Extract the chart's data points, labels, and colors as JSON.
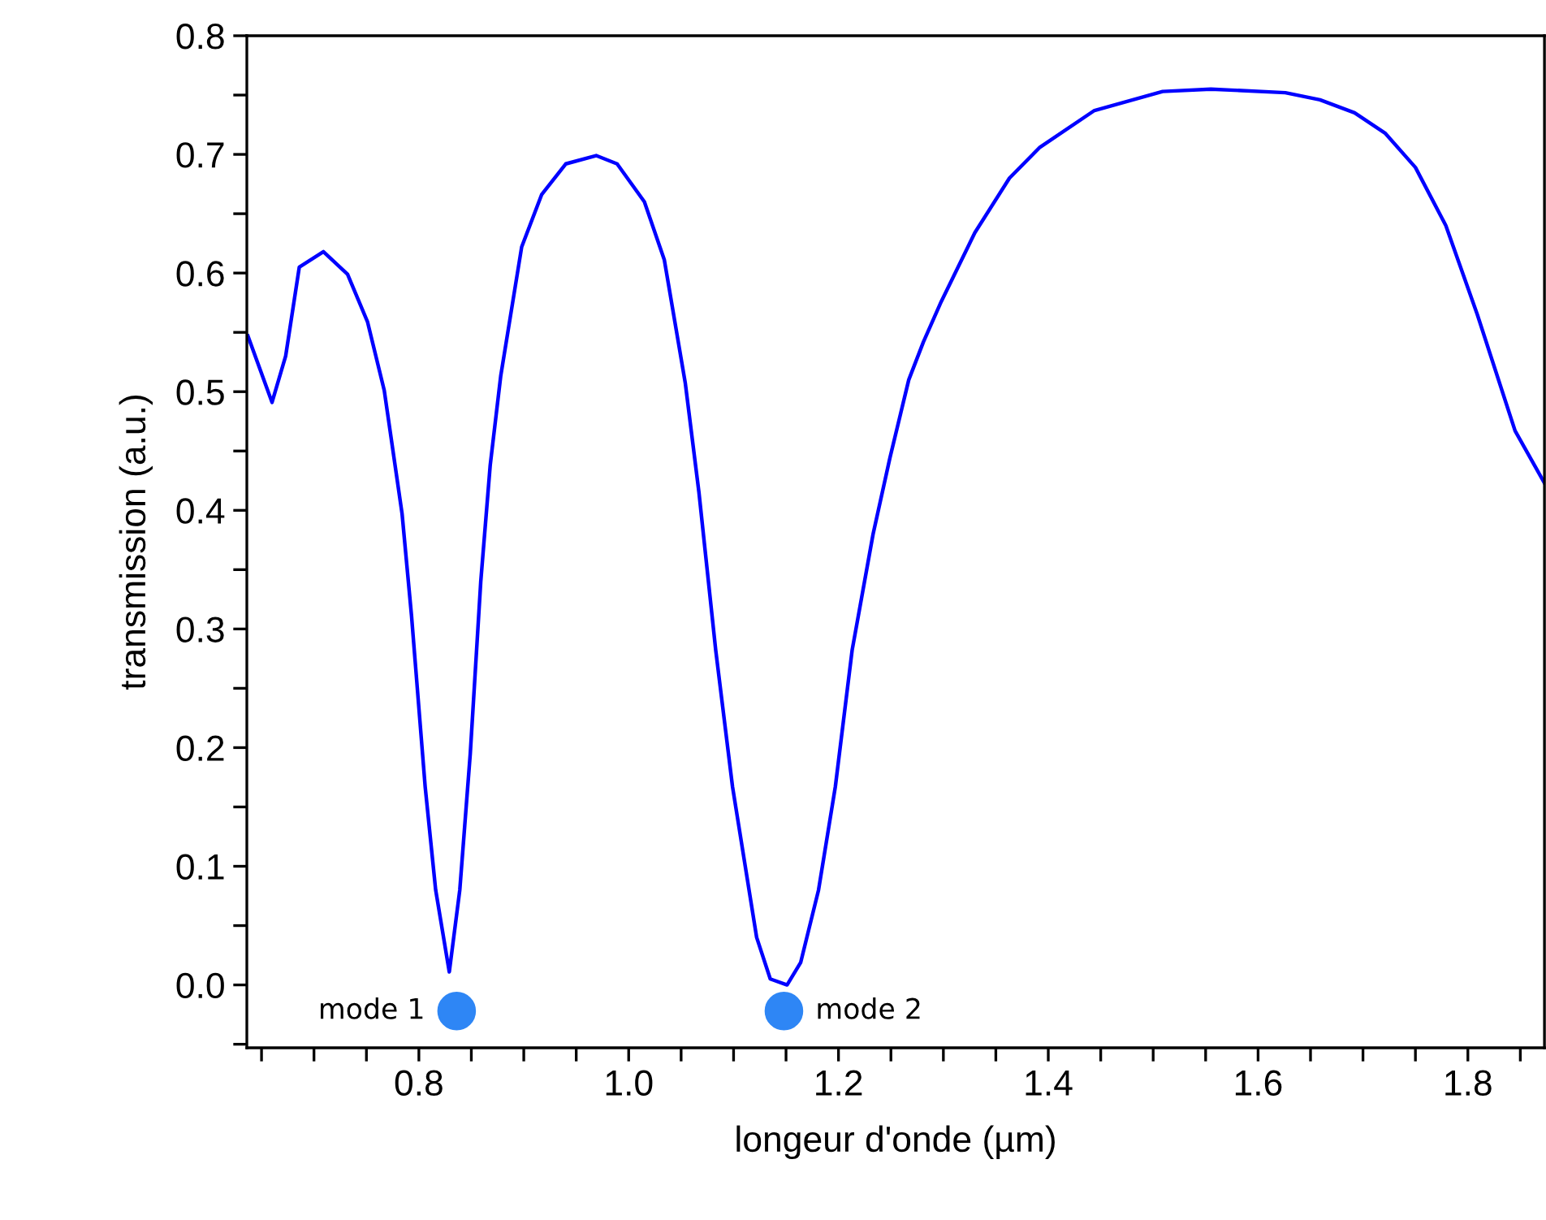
{
  "chart_data": {
    "type": "line",
    "xlabel": "longeur d'onde (µm)",
    "ylabel": "transmission (a.u.)",
    "xlim": [
      0.636,
      1.873
    ],
    "ylim": [
      -0.053,
      0.8
    ],
    "xticks": [
      {
        "value": 0.65,
        "label": null
      },
      {
        "value": 0.7,
        "label": null
      },
      {
        "value": 0.75,
        "label": null
      },
      {
        "value": 0.8,
        "label": "0.8"
      },
      {
        "value": 0.85,
        "label": null
      },
      {
        "value": 0.9,
        "label": null
      },
      {
        "value": 0.95,
        "label": null
      },
      {
        "value": 1.0,
        "label": "1.0"
      },
      {
        "value": 1.05,
        "label": null
      },
      {
        "value": 1.1,
        "label": null
      },
      {
        "value": 1.15,
        "label": null
      },
      {
        "value": 1.2,
        "label": "1.2"
      },
      {
        "value": 1.25,
        "label": null
      },
      {
        "value": 1.3,
        "label": null
      },
      {
        "value": 1.35,
        "label": null
      },
      {
        "value": 1.4,
        "label": "1.4"
      },
      {
        "value": 1.45,
        "label": null
      },
      {
        "value": 1.5,
        "label": null
      },
      {
        "value": 1.55,
        "label": null
      },
      {
        "value": 1.6,
        "label": "1.6"
      },
      {
        "value": 1.65,
        "label": null
      },
      {
        "value": 1.7,
        "label": null
      },
      {
        "value": 1.75,
        "label": null
      },
      {
        "value": 1.8,
        "label": "1.8"
      },
      {
        "value": 1.85,
        "label": null
      }
    ],
    "yticks": [
      {
        "value": -0.05,
        "label": null
      },
      {
        "value": 0,
        "label": "0.0"
      },
      {
        "value": 0.05,
        "label": null
      },
      0.1,
      {
        "value": 0.15,
        "label": null
      },
      0.2,
      {
        "value": 0.25,
        "label": null
      },
      0.3,
      {
        "value": 0.35,
        "label": null
      },
      0.4,
      {
        "value": 0.45,
        "label": null
      },
      0.5,
      {
        "value": 0.55,
        "label": null
      },
      0.6,
      {
        "value": 0.65,
        "label": null
      },
      0.7,
      {
        "value": 0.75,
        "label": null
      },
      0.8
    ],
    "grid": false,
    "legend": false,
    "series": [
      {
        "color": "#0000ff",
        "marker": "none",
        "line_style": "solid",
        "x": [
          0.637,
          0.66,
          0.673,
          0.686,
          0.709,
          0.732,
          0.751,
          0.767,
          0.784,
          0.793,
          0.806,
          0.816,
          0.829,
          0.839,
          0.849,
          0.859,
          0.868,
          0.878,
          0.898,
          0.917,
          0.94,
          0.969,
          0.989,
          1.015,
          1.034,
          1.054,
          1.067,
          1.083,
          1.099,
          1.122,
          1.135,
          1.151,
          1.164,
          1.181,
          1.197,
          1.213,
          1.233,
          1.249,
          1.267,
          1.281,
          1.298,
          1.33,
          1.363,
          1.392,
          1.444,
          1.509,
          1.555,
          1.626,
          1.659,
          1.692,
          1.721,
          1.75,
          1.779,
          1.809,
          1.845,
          1.873
        ],
        "values": [
          0.547,
          0.491,
          0.53,
          0.605,
          0.618,
          0.599,
          0.559,
          0.501,
          0.397,
          0.311,
          0.167,
          0.08,
          0.011,
          0.08,
          0.195,
          0.34,
          0.438,
          0.513,
          0.622,
          0.666,
          0.692,
          0.699,
          0.692,
          0.66,
          0.611,
          0.507,
          0.415,
          0.282,
          0.167,
          0.04,
          0.005,
          0.0,
          0.019,
          0.08,
          0.167,
          0.282,
          0.38,
          0.444,
          0.51,
          0.542,
          0.576,
          0.634,
          0.68,
          0.706,
          0.737,
          0.753,
          0.755,
          0.752,
          0.746,
          0.735,
          0.718,
          0.689,
          0.64,
          0.565,
          0.467,
          0.423
        ]
      },
      {
        "type": "scatter",
        "marker": "circle",
        "name": "mode 1",
        "color": "#2e86f5",
        "x": [
          0.836
        ],
        "values": [
          -0.022
        ]
      },
      {
        "type": "scatter",
        "marker": "circle",
        "name": "mode 2",
        "color": "#2e86f5",
        "x": [
          1.148
        ],
        "values": [
          -0.022
        ]
      }
    ]
  }
}
